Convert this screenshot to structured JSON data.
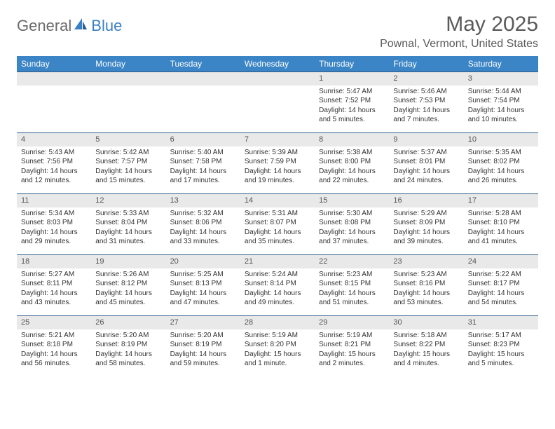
{
  "logo": {
    "general": "General",
    "blue": "Blue"
  },
  "title": "May 2025",
  "location": "Pownal, Vermont, United States",
  "colors": {
    "header_bg": "#3b85c6",
    "header_text": "#ffffff",
    "daynum_bg": "#e9e9e9",
    "border": "#2f5d8a",
    "body_text": "#333333",
    "title_text": "#5a5a5a"
  },
  "days_of_week": [
    "Sunday",
    "Monday",
    "Tuesday",
    "Wednesday",
    "Thursday",
    "Friday",
    "Saturday"
  ],
  "weeks": [
    [
      null,
      null,
      null,
      null,
      {
        "n": "1",
        "sr": "Sunrise: 5:47 AM",
        "ss": "Sunset: 7:52 PM",
        "d1": "Daylight: 14 hours",
        "d2": "and 5 minutes."
      },
      {
        "n": "2",
        "sr": "Sunrise: 5:46 AM",
        "ss": "Sunset: 7:53 PM",
        "d1": "Daylight: 14 hours",
        "d2": "and 7 minutes."
      },
      {
        "n": "3",
        "sr": "Sunrise: 5:44 AM",
        "ss": "Sunset: 7:54 PM",
        "d1": "Daylight: 14 hours",
        "d2": "and 10 minutes."
      }
    ],
    [
      {
        "n": "4",
        "sr": "Sunrise: 5:43 AM",
        "ss": "Sunset: 7:56 PM",
        "d1": "Daylight: 14 hours",
        "d2": "and 12 minutes."
      },
      {
        "n": "5",
        "sr": "Sunrise: 5:42 AM",
        "ss": "Sunset: 7:57 PM",
        "d1": "Daylight: 14 hours",
        "d2": "and 15 minutes."
      },
      {
        "n": "6",
        "sr": "Sunrise: 5:40 AM",
        "ss": "Sunset: 7:58 PM",
        "d1": "Daylight: 14 hours",
        "d2": "and 17 minutes."
      },
      {
        "n": "7",
        "sr": "Sunrise: 5:39 AM",
        "ss": "Sunset: 7:59 PM",
        "d1": "Daylight: 14 hours",
        "d2": "and 19 minutes."
      },
      {
        "n": "8",
        "sr": "Sunrise: 5:38 AM",
        "ss": "Sunset: 8:00 PM",
        "d1": "Daylight: 14 hours",
        "d2": "and 22 minutes."
      },
      {
        "n": "9",
        "sr": "Sunrise: 5:37 AM",
        "ss": "Sunset: 8:01 PM",
        "d1": "Daylight: 14 hours",
        "d2": "and 24 minutes."
      },
      {
        "n": "10",
        "sr": "Sunrise: 5:35 AM",
        "ss": "Sunset: 8:02 PM",
        "d1": "Daylight: 14 hours",
        "d2": "and 26 minutes."
      }
    ],
    [
      {
        "n": "11",
        "sr": "Sunrise: 5:34 AM",
        "ss": "Sunset: 8:03 PM",
        "d1": "Daylight: 14 hours",
        "d2": "and 29 minutes."
      },
      {
        "n": "12",
        "sr": "Sunrise: 5:33 AM",
        "ss": "Sunset: 8:04 PM",
        "d1": "Daylight: 14 hours",
        "d2": "and 31 minutes."
      },
      {
        "n": "13",
        "sr": "Sunrise: 5:32 AM",
        "ss": "Sunset: 8:06 PM",
        "d1": "Daylight: 14 hours",
        "d2": "and 33 minutes."
      },
      {
        "n": "14",
        "sr": "Sunrise: 5:31 AM",
        "ss": "Sunset: 8:07 PM",
        "d1": "Daylight: 14 hours",
        "d2": "and 35 minutes."
      },
      {
        "n": "15",
        "sr": "Sunrise: 5:30 AM",
        "ss": "Sunset: 8:08 PM",
        "d1": "Daylight: 14 hours",
        "d2": "and 37 minutes."
      },
      {
        "n": "16",
        "sr": "Sunrise: 5:29 AM",
        "ss": "Sunset: 8:09 PM",
        "d1": "Daylight: 14 hours",
        "d2": "and 39 minutes."
      },
      {
        "n": "17",
        "sr": "Sunrise: 5:28 AM",
        "ss": "Sunset: 8:10 PM",
        "d1": "Daylight: 14 hours",
        "d2": "and 41 minutes."
      }
    ],
    [
      {
        "n": "18",
        "sr": "Sunrise: 5:27 AM",
        "ss": "Sunset: 8:11 PM",
        "d1": "Daylight: 14 hours",
        "d2": "and 43 minutes."
      },
      {
        "n": "19",
        "sr": "Sunrise: 5:26 AM",
        "ss": "Sunset: 8:12 PM",
        "d1": "Daylight: 14 hours",
        "d2": "and 45 minutes."
      },
      {
        "n": "20",
        "sr": "Sunrise: 5:25 AM",
        "ss": "Sunset: 8:13 PM",
        "d1": "Daylight: 14 hours",
        "d2": "and 47 minutes."
      },
      {
        "n": "21",
        "sr": "Sunrise: 5:24 AM",
        "ss": "Sunset: 8:14 PM",
        "d1": "Daylight: 14 hours",
        "d2": "and 49 minutes."
      },
      {
        "n": "22",
        "sr": "Sunrise: 5:23 AM",
        "ss": "Sunset: 8:15 PM",
        "d1": "Daylight: 14 hours",
        "d2": "and 51 minutes."
      },
      {
        "n": "23",
        "sr": "Sunrise: 5:23 AM",
        "ss": "Sunset: 8:16 PM",
        "d1": "Daylight: 14 hours",
        "d2": "and 53 minutes."
      },
      {
        "n": "24",
        "sr": "Sunrise: 5:22 AM",
        "ss": "Sunset: 8:17 PM",
        "d1": "Daylight: 14 hours",
        "d2": "and 54 minutes."
      }
    ],
    [
      {
        "n": "25",
        "sr": "Sunrise: 5:21 AM",
        "ss": "Sunset: 8:18 PM",
        "d1": "Daylight: 14 hours",
        "d2": "and 56 minutes."
      },
      {
        "n": "26",
        "sr": "Sunrise: 5:20 AM",
        "ss": "Sunset: 8:19 PM",
        "d1": "Daylight: 14 hours",
        "d2": "and 58 minutes."
      },
      {
        "n": "27",
        "sr": "Sunrise: 5:20 AM",
        "ss": "Sunset: 8:19 PM",
        "d1": "Daylight: 14 hours",
        "d2": "and 59 minutes."
      },
      {
        "n": "28",
        "sr": "Sunrise: 5:19 AM",
        "ss": "Sunset: 8:20 PM",
        "d1": "Daylight: 15 hours",
        "d2": "and 1 minute."
      },
      {
        "n": "29",
        "sr": "Sunrise: 5:19 AM",
        "ss": "Sunset: 8:21 PM",
        "d1": "Daylight: 15 hours",
        "d2": "and 2 minutes."
      },
      {
        "n": "30",
        "sr": "Sunrise: 5:18 AM",
        "ss": "Sunset: 8:22 PM",
        "d1": "Daylight: 15 hours",
        "d2": "and 4 minutes."
      },
      {
        "n": "31",
        "sr": "Sunrise: 5:17 AM",
        "ss": "Sunset: 8:23 PM",
        "d1": "Daylight: 15 hours",
        "d2": "and 5 minutes."
      }
    ]
  ]
}
